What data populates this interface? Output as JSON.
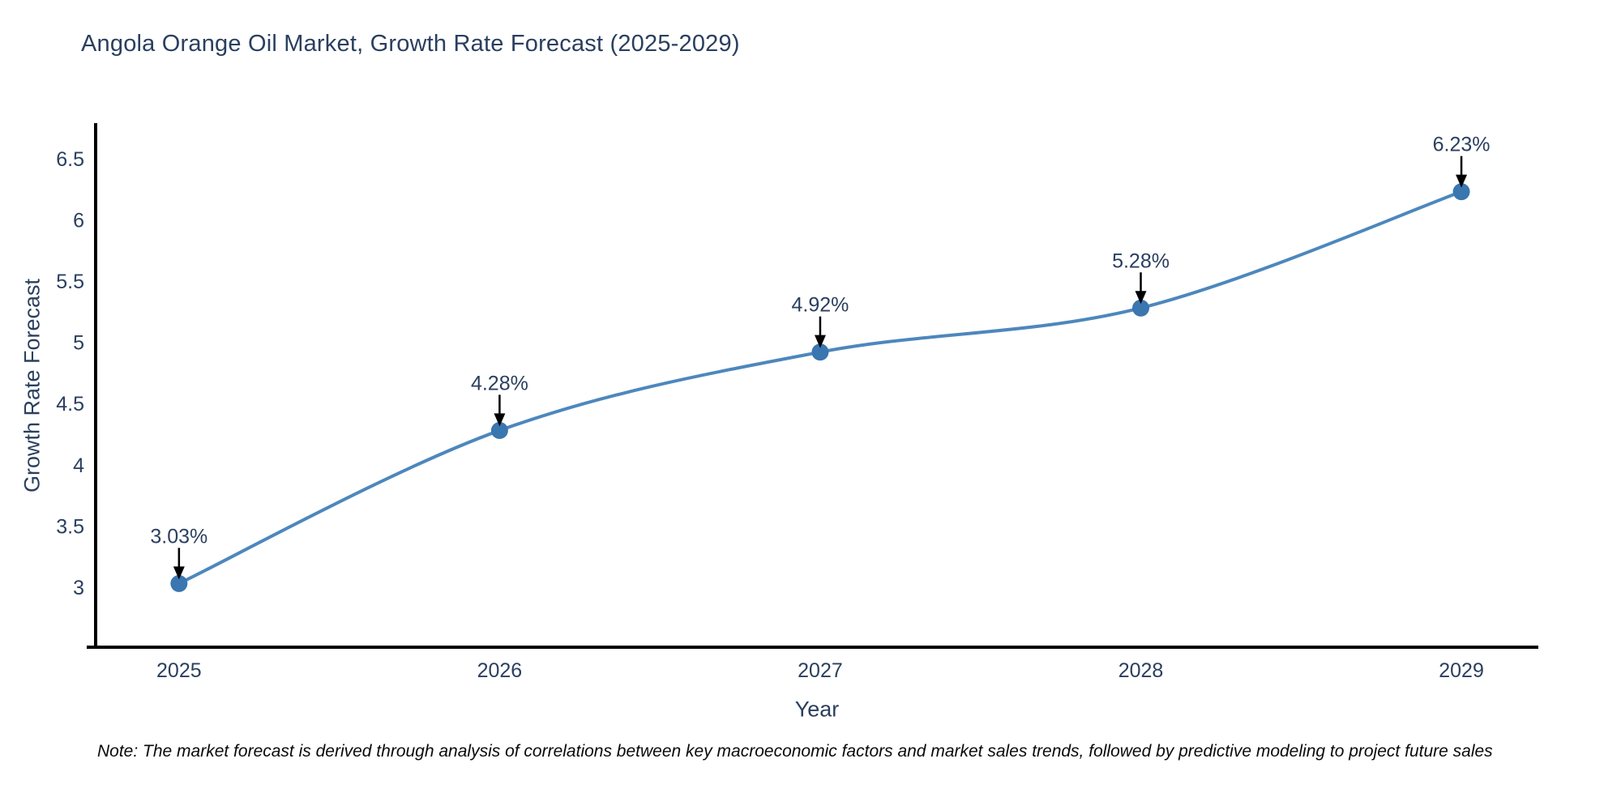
{
  "header": {
    "title": "Angola Orange Oil Market, Growth Rate Forecast (2025-2029)"
  },
  "footnote": "Note: The market forecast is derived through analysis of correlations between key macroeconomic factors and market sales trends, followed by predictive modeling to project future sales",
  "chart_data": {
    "type": "line",
    "title": "Angola Orange Oil Market, Growth Rate Forecast (2025-2029)",
    "xlabel": "Year",
    "ylabel": "Growth Rate Forecast",
    "x": [
      2025,
      2026,
      2027,
      2028,
      2029
    ],
    "values": [
      3.03,
      4.28,
      4.92,
      5.28,
      6.23
    ],
    "point_labels": [
      "3.03%",
      "4.28%",
      "4.92%",
      "5.28%",
      "6.23%"
    ],
    "xticks": [
      {
        "value": 2025,
        "label": "2025"
      },
      {
        "value": 2026,
        "label": "2026"
      },
      {
        "value": 2027,
        "label": "2027"
      },
      {
        "value": 2028,
        "label": "2028"
      },
      {
        "value": 2029,
        "label": "2029"
      }
    ],
    "yticks": [
      {
        "value": 3,
        "label": "3"
      },
      {
        "value": 3.5,
        "label": "3.5"
      },
      {
        "value": 4,
        "label": "4"
      },
      {
        "value": 4.5,
        "label": "4.5"
      },
      {
        "value": 5,
        "label": "5"
      },
      {
        "value": 5.5,
        "label": "5.5"
      },
      {
        "value": 6,
        "label": "6"
      },
      {
        "value": 6.5,
        "label": "6.5"
      }
    ],
    "xlim": [
      2024.74,
      2029.24
    ],
    "ylim": [
      2.51,
      6.79
    ],
    "grid": false,
    "legend": false,
    "line_shape": "spline",
    "colors": {
      "line": "#4d87bd",
      "marker": "#3a76af",
      "arrow": "#000000",
      "axis": "#000000",
      "text": "#2a3f5f"
    }
  }
}
